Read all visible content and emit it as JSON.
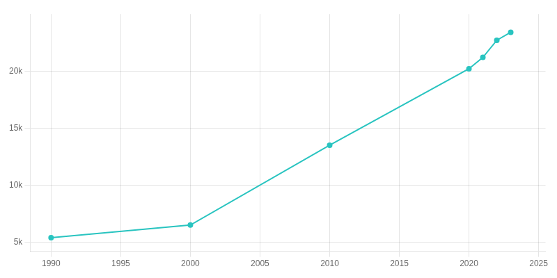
{
  "chart_data": {
    "type": "line",
    "x": [
      1990,
      2000,
      2010,
      2020,
      2021,
      2022,
      2023
    ],
    "values": [
      5400,
      6500,
      13500,
      20200,
      21200,
      22700,
      23400
    ],
    "color": "#29c4c0",
    "marker": "circle",
    "xlim": [
      1988.5,
      2025.5
    ],
    "xticks": [
      1990,
      1995,
      2000,
      2005,
      2010,
      2015,
      2020,
      2025
    ],
    "ylim": [
      4200,
      25000
    ],
    "yticks": [
      {
        "value": 5000,
        "label": "5k"
      },
      {
        "value": 10000,
        "label": "10k"
      },
      {
        "value": 15000,
        "label": "15k"
      },
      {
        "value": 20000,
        "label": "20k"
      }
    ],
    "grid": true
  }
}
